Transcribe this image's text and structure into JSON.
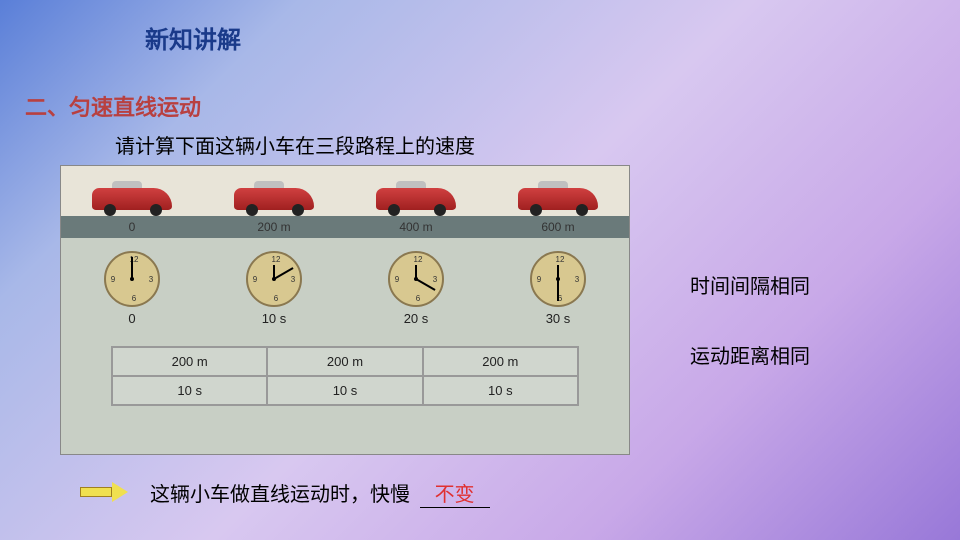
{
  "title": "新知讲解",
  "section": "二、匀速直线运动",
  "instruction": "请计算下面这辆小车在三段路程上的速度",
  "diagram": {
    "distances": [
      "0",
      "200 m",
      "400 m",
      "600 m"
    ],
    "clocks": [
      {
        "label": "0",
        "minuteDeg": 0,
        "hourDeg": 0
      },
      {
        "label": "10 s",
        "minuteDeg": 60,
        "hourDeg": 0
      },
      {
        "label": "20 s",
        "minuteDeg": 120,
        "hourDeg": 0
      },
      {
        "label": "30 s",
        "minuteDeg": 180,
        "hourDeg": 0
      }
    ],
    "table": {
      "row1": [
        "200 m",
        "200 m",
        "200 m"
      ],
      "row2": [
        "10 s",
        "10 s",
        "10 s"
      ]
    }
  },
  "sideNotes": {
    "line1": "时间间隔相同",
    "line2": "运动距离相同"
  },
  "conclusion": {
    "prefix": "这辆小车做直线运动时，快慢",
    "answer": "不变"
  }
}
